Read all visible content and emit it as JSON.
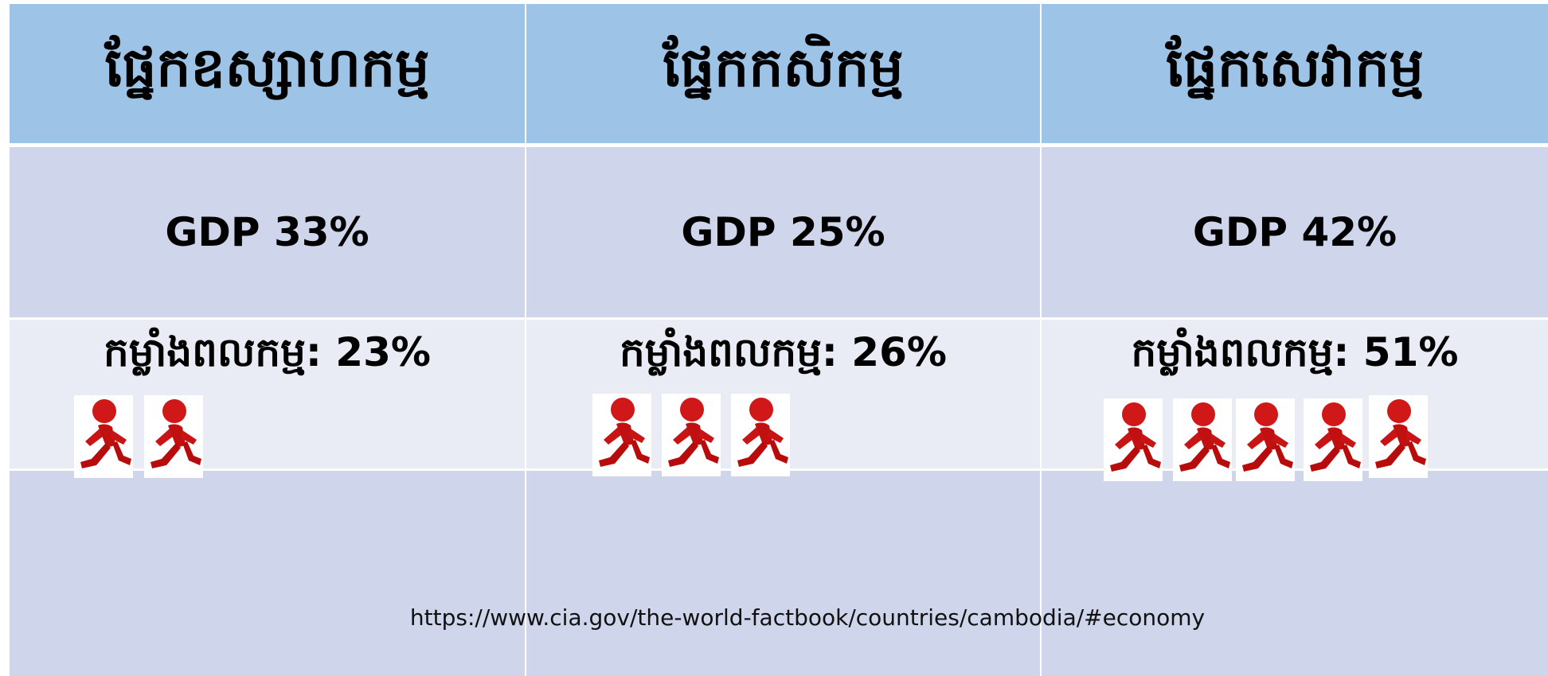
{
  "header": {
    "columns": [
      "ផ្នែកឧស្សាហកម្ម",
      "ផ្នែកកសិកម្ម",
      "ផ្នែកសេវាកម្ម"
    ]
  },
  "table": {
    "rows": [
      [
        "GDP 33%",
        "GDP 25%",
        "GDP 42%"
      ],
      [
        "កម្លាំងពលកម្ម: 23%",
        "កម្លាំងពលកម្ម: 26%",
        "កម្លាំងពលកម្ម: 51%"
      ]
    ]
  },
  "source": "https://www.cia.gov/the-world-factbook/countries/cambodia/#economy"
}
